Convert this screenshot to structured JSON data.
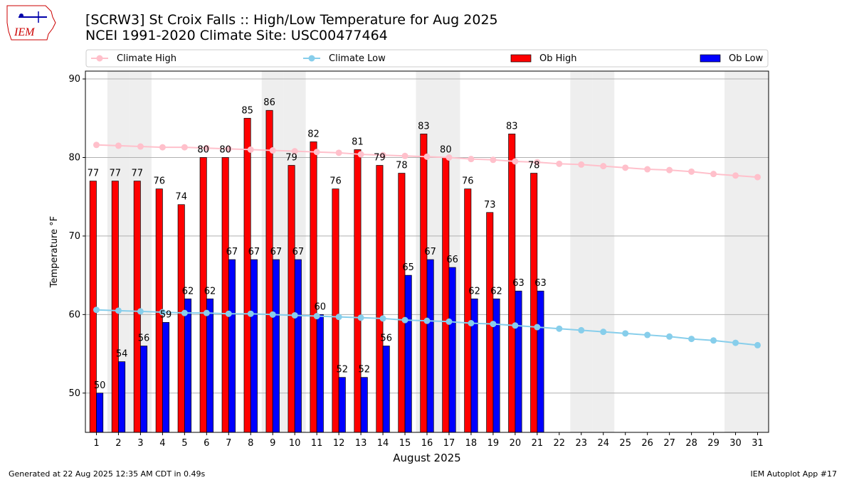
{
  "header": {
    "title_line1": "[SCRW3] St Croix Falls :: High/Low Temperature for Aug 2025",
    "title_line2": "NCEI 1991-2020 Climate Site: USC00477464"
  },
  "logo": {
    "text": "IEM",
    "color": "#cc0000"
  },
  "footer": {
    "left": "Generated at 22 Aug 2025 12:35 AM CDT in 0.49s",
    "right": "IEM Autoplot App #17"
  },
  "colors": {
    "ob_high": "#ff0000",
    "ob_low": "#0000ff",
    "climate_high": "#ffc0cb",
    "climate_low": "#87ceeb",
    "weekend_band": "#eeeeee",
    "grid": "#b0b0b0"
  },
  "chart_data": {
    "type": "bar",
    "xlabel": "August 2025",
    "ylabel": "Temperature °F",
    "ylim": [
      45,
      91
    ],
    "yticks": [
      50,
      60,
      70,
      80,
      90
    ],
    "grid": "horizontal",
    "legend_position": "top",
    "days": [
      1,
      2,
      3,
      4,
      5,
      6,
      7,
      8,
      9,
      10,
      11,
      12,
      13,
      14,
      15,
      16,
      17,
      18,
      19,
      20,
      21,
      22,
      23,
      24,
      25,
      26,
      27,
      28,
      29,
      30,
      31
    ],
    "weekend_days": [
      2,
      3,
      9,
      10,
      16,
      17,
      23,
      24,
      30,
      31
    ],
    "series": [
      {
        "name": "Climate High",
        "kind": "line",
        "values": [
          81.6,
          81.5,
          81.4,
          81.3,
          81.3,
          81.2,
          81.1,
          81.0,
          80.9,
          80.8,
          80.7,
          80.6,
          80.4,
          80.3,
          80.2,
          80.1,
          80.0,
          79.8,
          79.7,
          79.5,
          79.4,
          79.2,
          79.1,
          78.9,
          78.7,
          78.5,
          78.4,
          78.2,
          77.9,
          77.7,
          77.5
        ]
      },
      {
        "name": "Climate Low",
        "kind": "line",
        "values": [
          60.6,
          60.5,
          60.4,
          60.3,
          60.2,
          60.2,
          60.1,
          60.1,
          60.0,
          59.9,
          59.8,
          59.7,
          59.6,
          59.5,
          59.3,
          59.2,
          59.1,
          58.9,
          58.8,
          58.6,
          58.4,
          58.2,
          58.0,
          57.8,
          57.6,
          57.4,
          57.2,
          56.9,
          56.7,
          56.4,
          56.1
        ]
      },
      {
        "name": "Ob High",
        "kind": "bar",
        "values": [
          77,
          77,
          77,
          76,
          74,
          80,
          80,
          85,
          86,
          79,
          82,
          76,
          81,
          79,
          78,
          83,
          80,
          76,
          73,
          83,
          78
        ]
      },
      {
        "name": "Ob Low",
        "kind": "bar",
        "values": [
          50,
          54,
          56,
          59,
          62,
          62,
          67,
          67,
          67,
          67,
          60,
          52,
          52,
          56,
          65,
          67,
          66,
          62,
          62,
          63,
          63
        ]
      }
    ]
  }
}
